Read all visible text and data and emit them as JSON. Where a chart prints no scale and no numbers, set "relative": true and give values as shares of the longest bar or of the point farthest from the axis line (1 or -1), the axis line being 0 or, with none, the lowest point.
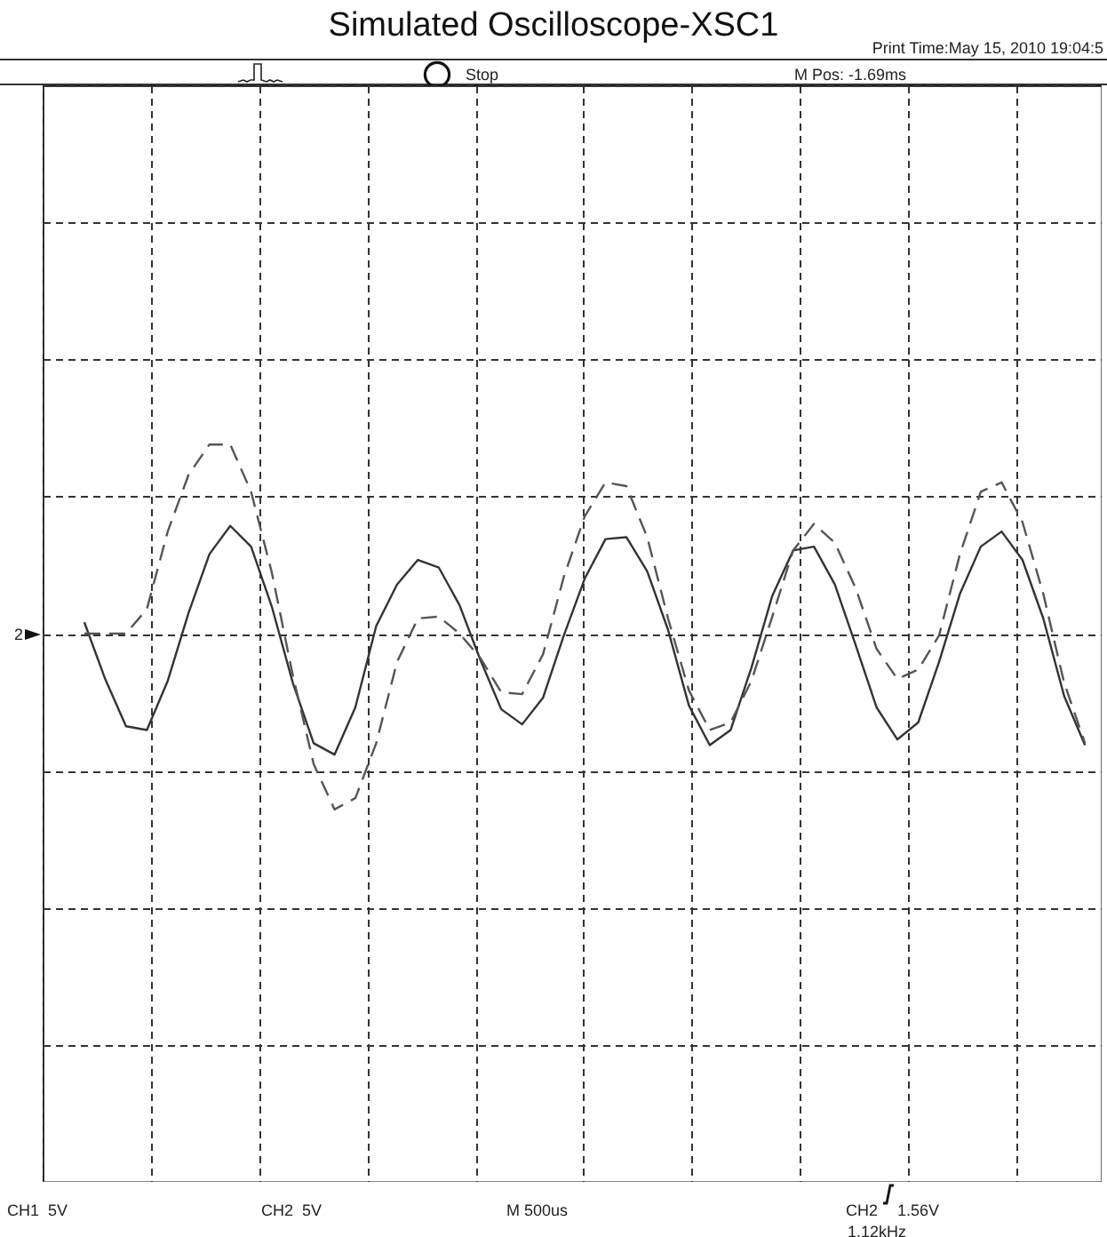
{
  "chart_data": {
    "type": "line",
    "title": "Simulated Oscilloscope-XSC1",
    "relative": true,
    "grid": true,
    "categories": [
      null,
      null,
      null,
      null,
      null,
      null,
      null,
      null,
      null,
      null,
      null,
      null,
      null,
      null,
      null,
      null,
      null,
      null,
      null,
      null,
      null,
      null,
      null,
      null,
      null,
      null,
      null,
      null,
      null,
      null,
      null,
      null,
      null,
      null,
      null,
      null,
      null,
      null,
      null,
      null,
      null,
      null,
      null,
      null,
      null,
      null,
      null,
      null,
      null
    ],
    "series": [
      {
        "color": "#333333",
        "line_style": "solid",
        "values": [
          0.06,
          -0.24,
          -0.49,
          -0.51,
          -0.25,
          0.11,
          0.42,
          0.57,
          0.46,
          0.14,
          -0.26,
          -0.58,
          -0.64,
          -0.39,
          0.04,
          0.26,
          0.39,
          0.35,
          0.15,
          -0.14,
          -0.4,
          -0.48,
          -0.34,
          -0.01,
          0.29,
          0.5,
          0.51,
          0.33,
          0.02,
          -0.38,
          -0.59,
          -0.51,
          -0.18,
          0.2,
          0.44,
          0.46,
          0.26,
          -0.06,
          -0.39,
          -0.56,
          -0.47,
          -0.15,
          0.21,
          0.46,
          0.54,
          0.39,
          0.08,
          -0.33,
          -0.59
        ]
      },
      {
        "color": "#555555",
        "line_style": "dashed",
        "values": [
          0,
          0,
          0,
          0.13,
          0.54,
          0.84,
          1,
          1,
          0.75,
          0.32,
          -0.22,
          -0.69,
          -0.93,
          -0.87,
          -0.58,
          -0.15,
          0.08,
          0.09,
          0,
          -0.13,
          -0.31,
          -0.32,
          -0.11,
          0.3,
          0.62,
          0.8,
          0.78,
          0.51,
          0.08,
          -0.3,
          -0.51,
          -0.47,
          -0.25,
          0.09,
          0.44,
          0.58,
          0.48,
          0.24,
          -0.08,
          -0.24,
          -0.19,
          -0.01,
          0.42,
          0.75,
          0.8,
          0.59,
          0.21,
          -0.26,
          -0.58
        ]
      }
    ],
    "annotations": [
      "Print Time:May 15, 2010 19:04:5",
      "Stop",
      "M Pos: -1.69ms",
      "2",
      "CH1  5V",
      "CH2  5V",
      "M 500us",
      "CH2",
      "1.56V",
      "1.12kHz"
    ]
  }
}
